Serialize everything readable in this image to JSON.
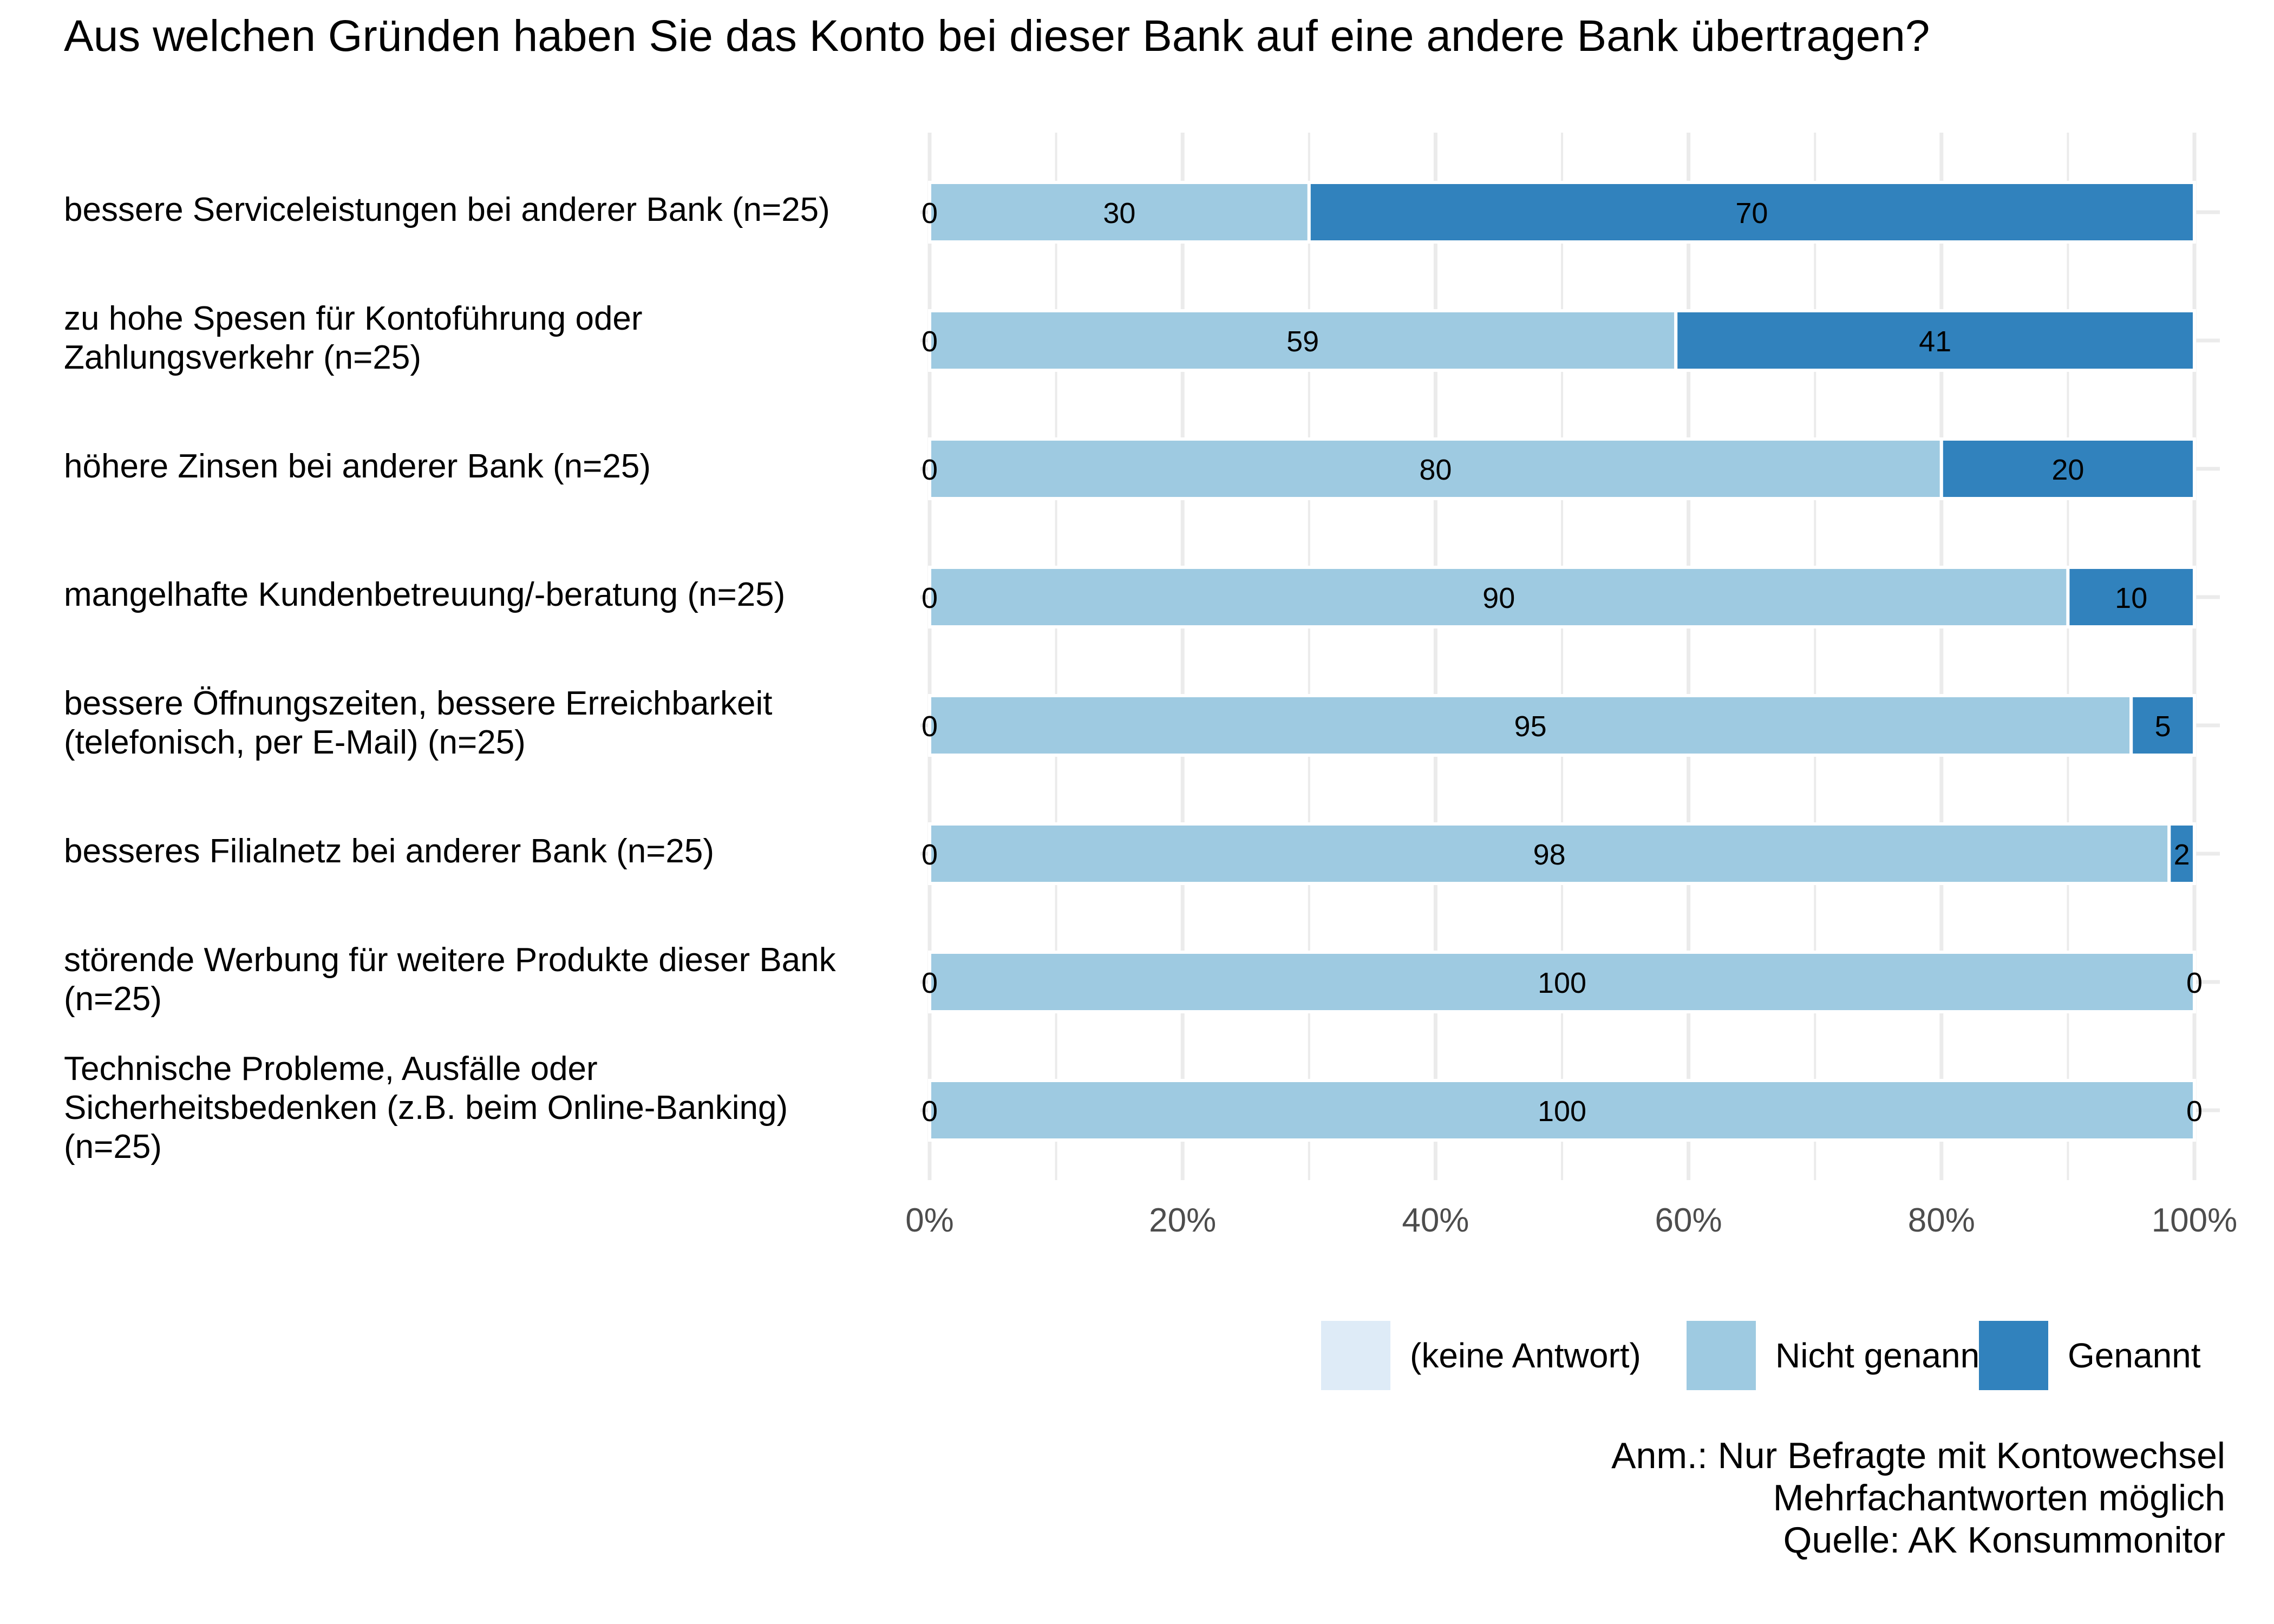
{
  "chart_data": {
    "type": "bar",
    "orientation": "horizontal",
    "stacked": true,
    "percent_scale": true,
    "title": "Aus welchen Gründen haben Sie das Konto bei dieser Bank auf eine andere Bank übertragen?",
    "xlabel": "",
    "ylabel": "",
    "xlim": [
      0,
      100
    ],
    "grid": true,
    "legend_position": "bottom-right",
    "x_ticks": [
      "0%",
      "20%",
      "40%",
      "60%",
      "80%",
      "100%"
    ],
    "categories": [
      "bessere Serviceleistungen bei anderer Bank (n=25)",
      "zu hohe Spesen für Kontoführung oder Zahlungsverkehr (n=25)",
      "höhere Zinsen bei anderer Bank (n=25)",
      "mangelhafte Kundenbetreuung/-beratung (n=25)",
      "bessere Öffnungszeiten, bessere Erreichbarkeit (telefonisch, per E-Mail) (n=25)",
      "besseres Filialnetz bei anderer Bank (n=25)",
      "störende Werbung für weitere Produkte dieser Bank (n=25)",
      "Technische Probleme, Ausfälle oder Sicherheitsbedenken (z.B. beim Online-Banking) (n=25)"
    ],
    "category_lines": [
      [
        "bessere Serviceleistungen bei anderer Bank (n=25)"
      ],
      [
        "zu hohe Spesen für Kontoführung oder",
        "Zahlungsverkehr (n=25)"
      ],
      [
        "höhere Zinsen bei anderer Bank (n=25)"
      ],
      [
        "mangelhafte Kundenbetreuung/-beratung (n=25)"
      ],
      [
        "bessere Öffnungszeiten, bessere Erreichbarkeit",
        "(telefonisch, per E-Mail) (n=25)"
      ],
      [
        "besseres Filialnetz bei anderer Bank (n=25)"
      ],
      [
        "störende Werbung für weitere Produkte dieser Bank",
        "(n=25)"
      ],
      [
        "Technische Probleme, Ausfälle oder",
        "Sicherheitsbedenken (z.B. beim Online-Banking)",
        "(n=25)"
      ]
    ],
    "series": [
      {
        "name": "(keine Antwort)",
        "color": "#deebf7",
        "values": [
          0,
          0,
          0,
          0,
          0,
          0,
          0,
          0
        ]
      },
      {
        "name": "Nicht genannt",
        "color": "#9ecae1",
        "values": [
          30,
          59,
          80,
          90,
          95,
          98,
          100,
          100
        ]
      },
      {
        "name": "Genannt",
        "color": "#3182bd",
        "values": [
          70,
          41,
          20,
          10,
          5,
          2,
          0,
          0
        ]
      }
    ],
    "caption": [
      "Anm.: Nur Befragte mit Kontowechsel",
      "Mehrfachantworten möglich",
      "Quelle: AK Konsummonitor"
    ]
  }
}
